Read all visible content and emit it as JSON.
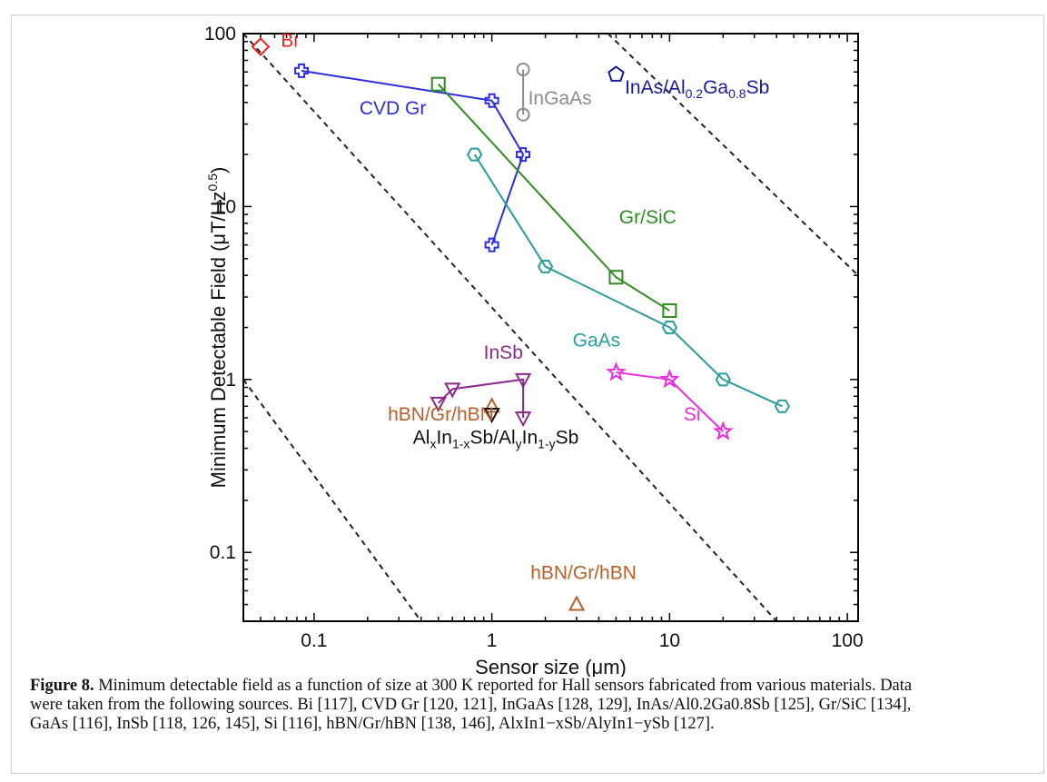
{
  "chart_data": {
    "type": "scatter",
    "x_scale": "log",
    "y_scale": "log",
    "xlabel": "Sensor size (μm)",
    "ylabel": "Minimum Detectable Field (μT/Hz^0.5)",
    "xlim": [
      0.04,
      115
    ],
    "ylim": [
      0.04,
      100
    ],
    "x_ticks": [
      "0.1",
      "1",
      "10",
      "100"
    ],
    "y_ticks": [
      "0.1",
      "1",
      "10",
      "100"
    ],
    "grid": false,
    "legend": "none",
    "series": [
      {
        "name": "Bi",
        "color": "#e8231f",
        "marker": "diamond",
        "line": false,
        "x": [
          0.05
        ],
        "y": [
          84
        ]
      },
      {
        "name": "CVD Gr",
        "color": "#2d2de0",
        "marker": "cross",
        "line": true,
        "x": [
          0.085,
          1.0,
          1.5,
          1.0
        ],
        "y": [
          61,
          41,
          20,
          6
        ]
      },
      {
        "name": "InGaAs",
        "color": "#8c8c8c",
        "marker": "circle",
        "line": true,
        "x": [
          1.5,
          1.5
        ],
        "y": [
          62,
          34
        ]
      },
      {
        "name": "InAs/Al0.2Ga0.8Sb",
        "color": "#1a1a9c",
        "marker": "pentagon",
        "line": false,
        "x": [
          5.0
        ],
        "y": [
          58
        ]
      },
      {
        "name": "Gr/SiC",
        "color": "#2e8b22",
        "marker": "square",
        "line": true,
        "x": [
          0.5,
          5.0,
          10.0
        ],
        "y": [
          51,
          3.9,
          2.5
        ]
      },
      {
        "name": "GaAs",
        "color": "#2a9d9d",
        "marker": "hexagon",
        "line": true,
        "x": [
          0.8,
          2.0,
          10.0,
          20.0,
          43.0
        ],
        "y": [
          20,
          4.5,
          2.0,
          1.0,
          0.7
        ]
      },
      {
        "name": "InSb",
        "color": "#8a2a8a",
        "marker": "triangle-down",
        "line": true,
        "x": [
          0.5,
          0.6,
          1.5,
          1.5
        ],
        "y": [
          0.73,
          0.88,
          1.0,
          0.6
        ]
      },
      {
        "name": "Si",
        "color": "#ee2ae0",
        "marker": "star",
        "line": true,
        "x": [
          5.0,
          10.0,
          20.0
        ],
        "y": [
          1.1,
          1.0,
          0.5
        ]
      },
      {
        "name": "hBN/Gr/hBN",
        "color": "#b5602a",
        "marker": "triangle-up",
        "line": false,
        "x": [
          1.0,
          3.0
        ],
        "y": [
          0.7,
          0.05
        ]
      },
      {
        "name": "AlxIn1-xSb/AlyIn1-ySb",
        "color": "#111111",
        "marker": "triangle-down",
        "line": false,
        "x": [
          1.0
        ],
        "y": [
          0.63
        ]
      }
    ],
    "reference_lines": [
      {
        "style": "dashed",
        "color": "#222222",
        "points": [
          [
            0.04,
            1.0
          ],
          [
            0.4,
            0.04
          ]
        ]
      },
      {
        "style": "dashed",
        "color": "#222222",
        "points": [
          [
            0.04,
            100
          ],
          [
            40,
            0.04
          ]
        ]
      },
      {
        "style": "dashed",
        "color": "#222222",
        "points": [
          [
            4.5,
            100
          ],
          [
            115,
            4.0
          ]
        ]
      }
    ],
    "annotations": [
      {
        "id": "bi",
        "text": "Bi",
        "color": "#e8231f",
        "x": 0.065,
        "y": 84
      },
      {
        "id": "cvd",
        "text": "CVD Gr",
        "color": "#2d2de0",
        "x": 0.18,
        "y": 34
      },
      {
        "id": "ingaas",
        "text": "InGaAs",
        "color": "#8c8c8c",
        "x": 1.6,
        "y": 39
      },
      {
        "id": "inas",
        "parts": [
          "InAs/Al",
          "0.2",
          "Ga",
          "0.8",
          "Sb"
        ],
        "color": "#1a1a9c",
        "x": 5.6,
        "y": 45
      },
      {
        "id": "grsic",
        "text": "Gr/SiC",
        "color": "#2e8b22",
        "x": 5.2,
        "y": 8.0
      },
      {
        "id": "gaas",
        "text": "GaAs",
        "color": "#2a9d9d",
        "x": 2.85,
        "y": 1.55
      },
      {
        "id": "insb",
        "text": "InSb",
        "color": "#8a2a8a",
        "x": 0.9,
        "y": 1.32
      },
      {
        "id": "si",
        "text": "Si",
        "color": "#ee2ae0",
        "x": 12.0,
        "y": 0.58
      },
      {
        "id": "hbn1",
        "text": "hBN/Gr/hBN",
        "color": "#b5602a",
        "x": 0.26,
        "y": 0.58
      },
      {
        "id": "alin",
        "parts": [
          "Al",
          "x",
          "In",
          "1-x",
          "Sb/Al",
          "y",
          "In",
          "1-y",
          "Sb"
        ],
        "color": "#111111",
        "x": 0.36,
        "y": 0.425
      },
      {
        "id": "hbn2",
        "text": "hBN/Gr/hBN",
        "color": "#b5602a",
        "x": 1.65,
        "y": 0.07
      }
    ]
  },
  "caption": {
    "label": "Figure 8.",
    "line1": " Minimum detectable field as a function of size at 300 K reported for Hall sensors fabricated from various materials. Data",
    "line2": "were taken from the following sources. Bi [117], CVD Gr [120, 121], InGaAs [128, 129], InAs/Al0.2Ga0.8Sb [125], Gr/SiC [134],",
    "line3": "GaAs [116], InSb [118, 126, 145], Si [116], hBN/Gr/hBN [138, 146], AlxIn1−xSb/AlyIn1−ySb [127]."
  }
}
